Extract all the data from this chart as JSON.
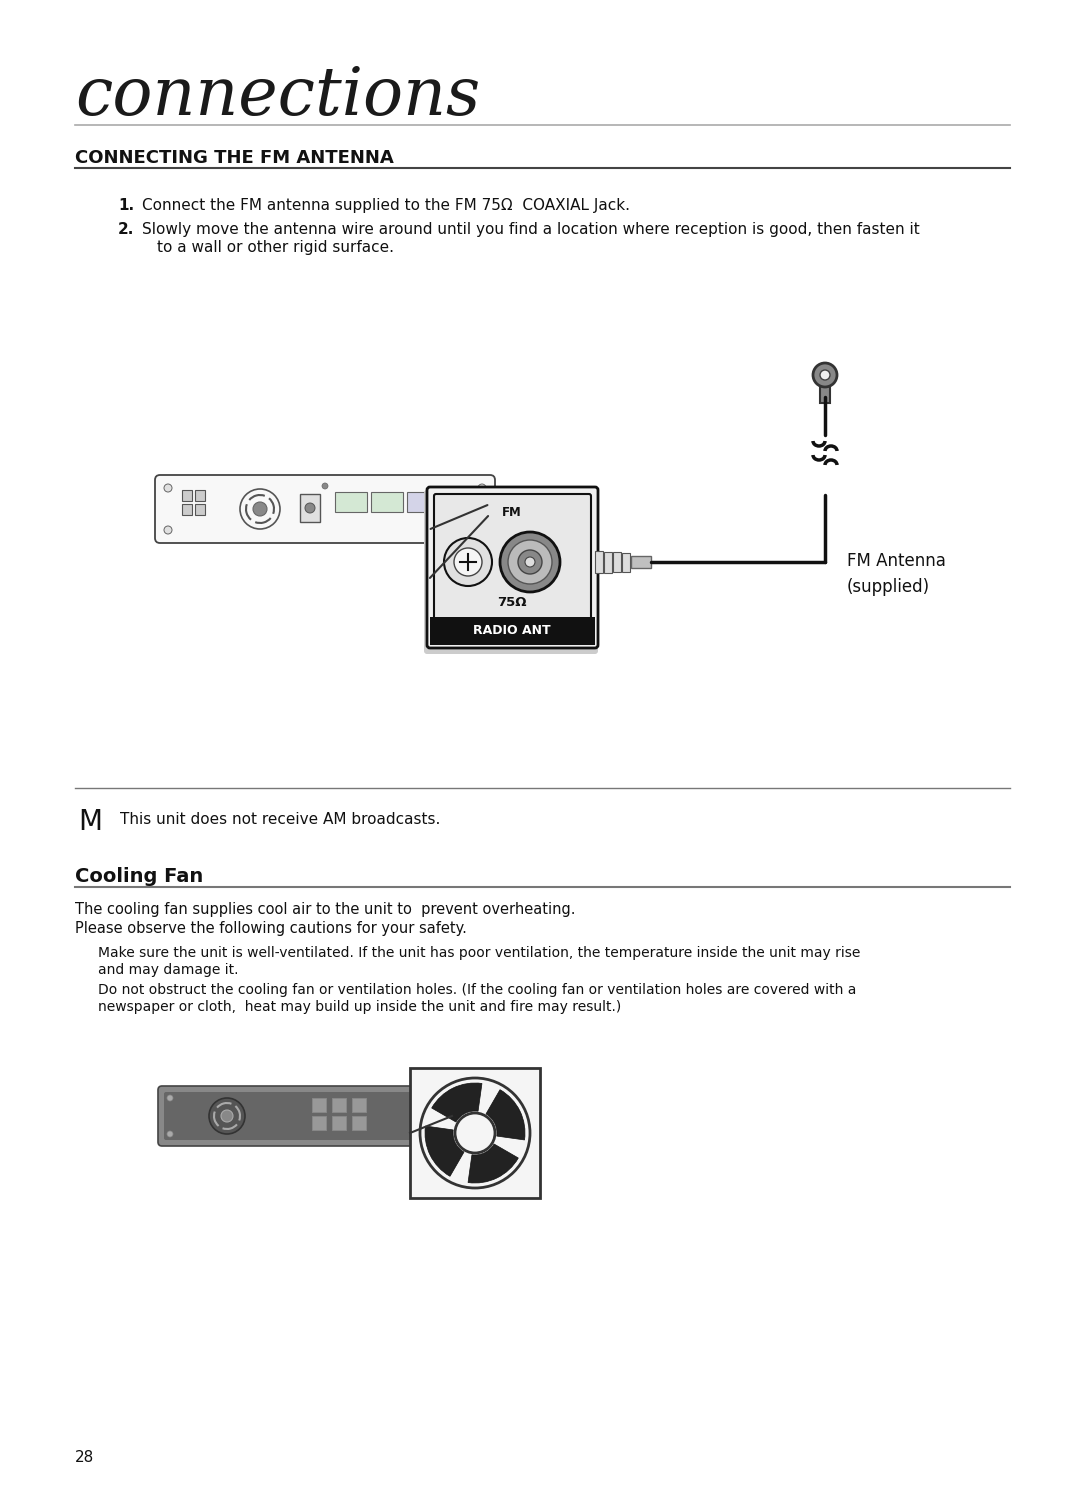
{
  "bg_color": "#ffffff",
  "page_title": "connections",
  "section1_title": "CONNECTING THE FM ANTENNA",
  "step1_num": "1.",
  "step1": "Connect the FM antenna supplied to the FM 75Ω  COAXIAL Jack.",
  "step2_num": "2.",
  "step2a": "Slowly move the antenna wire around until you find a location where reception is good, then fasten it",
  "step2b": "to a wall or other rigid surface.",
  "fm_antenna_line1": "FM Antenna",
  "fm_antenna_line2": "(supplied)",
  "note_letter": "M",
  "note_text": "This unit does not receive AM broadcasts.",
  "section2_title": "Cooling Fan",
  "cooling_text1": "The cooling fan supplies cool air to the unit to  prevent overheating.",
  "cooling_text2": "Please observe the following cautions for your safety.",
  "cooling_bullet1a": "Make sure the unit is well-ventilated. If the unit has poor ventilation, the temperature inside the unit may rise",
  "cooling_bullet1b": "and may damage it.",
  "cooling_bullet2a": "Do not obstruct the cooling fan or ventilation holes. (If the cooling fan or ventilation holes are covered with a",
  "cooling_bullet2b": "newspaper or cloth,  heat may build up inside the unit and fire may result.)",
  "page_number": "28",
  "radio_ant_label": "RADIO ANT",
  "fm_label": "FM",
  "ohm_label": "75Ω"
}
